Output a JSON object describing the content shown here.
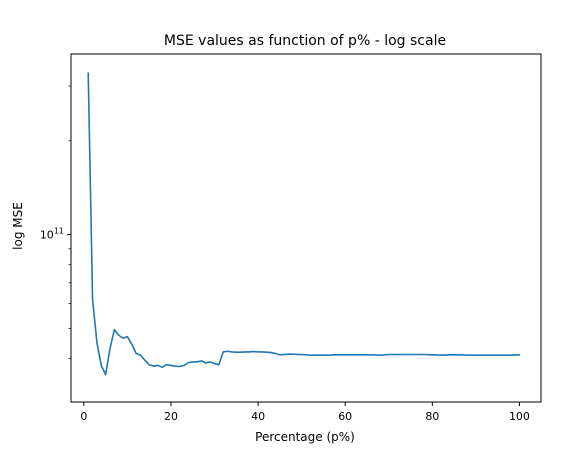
{
  "chart_data": {
    "type": "line",
    "title": "MSE values as function of p% - log scale",
    "xlabel": "Percentage (p%)",
    "ylabel": "log MSE",
    "xlim": [
      -2.95,
      104.95
    ],
    "ylim": [
      29000000000.0,
      380000000000.0
    ],
    "yscale": "log",
    "grid": false,
    "x_ticks": [
      0,
      20,
      40,
      60,
      80,
      100
    ],
    "x_tick_labels": [
      "0",
      "20",
      "40",
      "60",
      "80",
      "100"
    ],
    "y_major_ticks": [
      100000000000.0
    ],
    "y_major_tick_labels": [
      {
        "base": "10",
        "exp": "11"
      }
    ],
    "y_minor_ticks": [
      40000000000.0,
      50000000000.0,
      60000000000.0,
      70000000000.0,
      80000000000.0,
      90000000000.0,
      200000000000.0,
      300000000000.0
    ],
    "color": "#1f77b4",
    "series": [
      {
        "name": "",
        "x": [
          1,
          2,
          3,
          4,
          5,
          6,
          7,
          8,
          9,
          10,
          11,
          12,
          13,
          14,
          15,
          16,
          17,
          18,
          19,
          20,
          21,
          22,
          23,
          24,
          25,
          26,
          27,
          28,
          29,
          30,
          31,
          32,
          33,
          34,
          35,
          36,
          37,
          38,
          39,
          40,
          41,
          42,
          43,
          44,
          45,
          46,
          47,
          48,
          49,
          50,
          52,
          54,
          56,
          58,
          60,
          62,
          64,
          66,
          68,
          70,
          72,
          74,
          76,
          78,
          80,
          82,
          84,
          86,
          88,
          90,
          92,
          94,
          96,
          98,
          100
        ],
        "y": [
          330000000000.0,
          62000000000.0,
          45000000000.0,
          38000000000.0,
          35500000000.0,
          43000000000.0,
          49500000000.0,
          47500000000.0,
          46500000000.0,
          47000000000.0,
          44500000000.0,
          41500000000.0,
          41000000000.0,
          39500000000.0,
          38200000000.0,
          37800000000.0,
          38000000000.0,
          37500000000.0,
          38200000000.0,
          38000000000.0,
          37800000000.0,
          37700000000.0,
          38000000000.0,
          38800000000.0,
          39000000000.0,
          39000000000.0,
          39300000000.0,
          38700000000.0,
          39000000000.0,
          38500000000.0,
          38200000000.0,
          42000000000.0,
          42200000000.0,
          42000000000.0,
          41900000000.0,
          41900000000.0,
          42000000000.0,
          42000000000.0,
          42100000000.0,
          42000000000.0,
          42000000000.0,
          41900000000.0,
          41800000000.0,
          41500000000.0,
          41100000000.0,
          41200000000.0,
          41300000000.0,
          41300000000.0,
          41200000000.0,
          41200000000.0,
          41000000000.0,
          41000000000.0,
          41000000000.0,
          41100000000.0,
          41100000000.0,
          41100000000.0,
          41100000000.0,
          41100000000.0,
          41000000000.0,
          41200000000.0,
          41200000000.0,
          41200000000.0,
          41200000000.0,
          41200000000.0,
          41100000000.0,
          41000000000.0,
          41100000000.0,
          41100000000.0,
          41000000000.0,
          41000000000.0,
          41000000000.0,
          41000000000.0,
          41000000000.0,
          41000000000.0,
          41100000000.0
        ]
      }
    ]
  }
}
